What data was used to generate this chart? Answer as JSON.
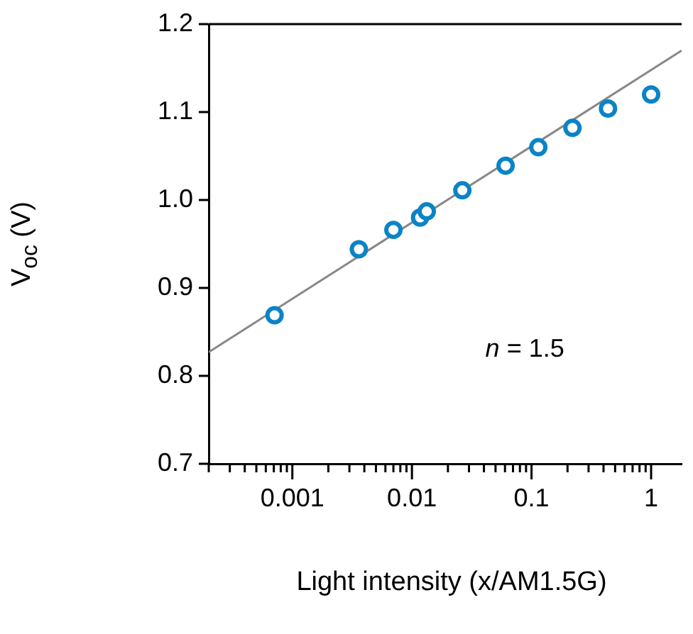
{
  "chart_data": {
    "type": "scatter",
    "xlabel": "Light intensity (x/AM1.5G)",
    "ylabel": "V$_{oc}$ (V)",
    "log": "x",
    "xlim": [
      0.0002,
      1.8
    ],
    "ylim": [
      0.7,
      1.2
    ],
    "xticks": [
      {
        "value": 0.0002,
        "label": null
      },
      {
        "value": 0.0003,
        "label": null
      },
      {
        "value": 0.0004,
        "label": null
      },
      {
        "value": 0.0005,
        "label": null
      },
      {
        "value": 0.0006,
        "label": null
      },
      {
        "value": 0.0007,
        "label": null
      },
      {
        "value": 0.0008,
        "label": null
      },
      {
        "value": 0.0009,
        "label": null
      },
      0.001,
      {
        "value": 0.002,
        "label": null
      },
      {
        "value": 0.003,
        "label": null
      },
      {
        "value": 0.004,
        "label": null
      },
      {
        "value": 0.005,
        "label": null
      },
      {
        "value": 0.006,
        "label": null
      },
      {
        "value": 0.007,
        "label": null
      },
      {
        "value": 0.008,
        "label": null
      },
      {
        "value": 0.009,
        "label": null
      },
      0.01,
      {
        "value": 0.02,
        "label": null
      },
      {
        "value": 0.03,
        "label": null
      },
      {
        "value": 0.04,
        "label": null
      },
      {
        "value": 0.05,
        "label": null
      },
      {
        "value": 0.06,
        "label": null
      },
      {
        "value": 0.07,
        "label": null
      },
      {
        "value": 0.08,
        "label": null
      },
      {
        "value": 0.09,
        "label": null
      },
      0.1,
      {
        "value": 0.2,
        "label": null
      },
      {
        "value": 0.3,
        "label": null
      },
      {
        "value": 0.4,
        "label": null
      },
      {
        "value": 0.5,
        "label": null
      },
      {
        "value": 0.6,
        "label": null
      },
      {
        "value": 0.7,
        "label": null
      },
      {
        "value": 0.8,
        "label": null
      },
      {
        "value": 0.9,
        "label": null
      },
      1
    ],
    "yticks": [
      0.7,
      0.8,
      0.9,
      {
        "value": 1,
        "label": "1.0"
      },
      1.1,
      1.2
    ],
    "grid": false,
    "legend": false,
    "marker": "circle",
    "series": [
      {
        "type": "line",
        "color": "#888888",
        "x": [
          0.0002,
          1.8
        ],
        "values": [
          0.827,
          1.17
        ],
        "marker": "none",
        "line_style": "solid"
      },
      {
        "color": "#0a84c6",
        "x": [
          0.00071,
          0.0036,
          0.007,
          0.0117,
          0.0133,
          0.0264,
          0.0607,
          0.114,
          0.22,
          0.436,
          1.0
        ],
        "values": [
          0.869,
          0.944,
          0.966,
          0.98,
          0.987,
          1.011,
          1.039,
          1.06,
          1.082,
          1.104,
          1.12
        ]
      }
    ],
    "annotations": [
      "n = 1.5"
    ]
  }
}
